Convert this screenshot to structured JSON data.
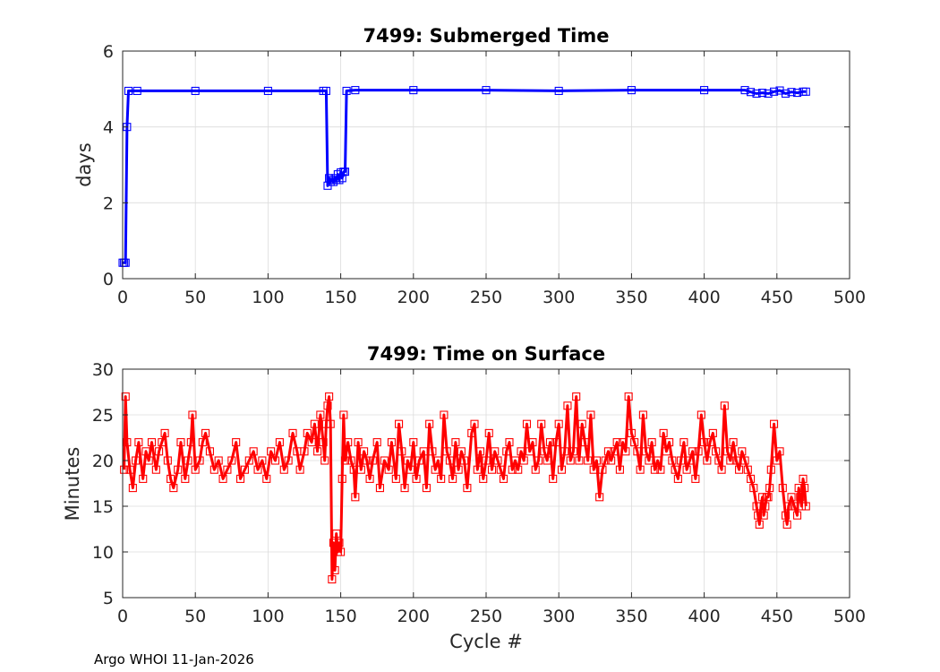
{
  "footer": "Argo WHOI 11-Jan-2026",
  "chart_data": [
    {
      "type": "line",
      "title": "7499: Submerged Time",
      "xlabel": "",
      "ylabel": "days",
      "xlim": [
        0,
        500
      ],
      "ylim": [
        0,
        6
      ],
      "xticks": [
        0,
        50,
        100,
        150,
        200,
        250,
        300,
        350,
        400,
        450,
        500
      ],
      "yticks": [
        0,
        2,
        4,
        6
      ],
      "grid": true,
      "color": "#0000ff",
      "marker": "square",
      "series": [
        {
          "name": "Submerged Time",
          "points": [
            [
              0,
              0.42
            ],
            [
              1,
              0.42
            ],
            [
              2,
              0.42
            ],
            [
              3,
              4.0
            ],
            [
              4,
              4.95
            ],
            [
              10,
              4.95
            ],
            [
              50,
              4.95
            ],
            [
              100,
              4.95
            ],
            [
              138,
              4.95
            ],
            [
              140,
              4.95
            ],
            [
              141,
              2.45
            ],
            [
              142,
              2.65
            ],
            [
              143,
              2.55
            ],
            [
              144,
              2.6
            ],
            [
              145,
              2.55
            ],
            [
              146,
              2.65
            ],
            [
              147,
              2.6
            ],
            [
              148,
              2.75
            ],
            [
              149,
              2.6
            ],
            [
              150,
              2.8
            ],
            [
              151,
              2.65
            ],
            [
              152,
              2.82
            ],
            [
              153,
              2.82
            ],
            [
              154,
              4.95
            ],
            [
              160,
              4.97
            ],
            [
              200,
              4.97
            ],
            [
              250,
              4.97
            ],
            [
              300,
              4.95
            ],
            [
              350,
              4.97
            ],
            [
              400,
              4.97
            ],
            [
              428,
              4.97
            ],
            [
              432,
              4.92
            ],
            [
              436,
              4.88
            ],
            [
              440,
              4.9
            ],
            [
              444,
              4.88
            ],
            [
              448,
              4.93
            ],
            [
              452,
              4.96
            ],
            [
              456,
              4.88
            ],
            [
              460,
              4.92
            ],
            [
              464,
              4.9
            ],
            [
              468,
              4.93
            ],
            [
              470,
              4.93
            ]
          ]
        }
      ]
    },
    {
      "type": "line",
      "title": "7499: Time on Surface",
      "xlabel": "Cycle #",
      "ylabel": "Minutes",
      "xlim": [
        0,
        500
      ],
      "ylim": [
        5,
        30
      ],
      "xticks": [
        0,
        50,
        100,
        150,
        200,
        250,
        300,
        350,
        400,
        450,
        500
      ],
      "yticks": [
        5,
        10,
        15,
        20,
        25,
        30
      ],
      "grid": true,
      "color": "#ff0000",
      "marker": "square",
      "series": [
        {
          "name": "Time on Surface",
          "points": [
            [
              1,
              19
            ],
            [
              2,
              27
            ],
            [
              3,
              22
            ],
            [
              5,
              19
            ],
            [
              7,
              17
            ],
            [
              9,
              20
            ],
            [
              11,
              22
            ],
            [
              14,
              18
            ],
            [
              16,
              21
            ],
            [
              18,
              20
            ],
            [
              20,
              22
            ],
            [
              23,
              19
            ],
            [
              25,
              21
            ],
            [
              27,
              22
            ],
            [
              29,
              23
            ],
            [
              31,
              20
            ],
            [
              33,
              18
            ],
            [
              35,
              17
            ],
            [
              38,
              19
            ],
            [
              40,
              22
            ],
            [
              43,
              18
            ],
            [
              45,
              20
            ],
            [
              47,
              22
            ],
            [
              48,
              25
            ],
            [
              50,
              19
            ],
            [
              53,
              20
            ],
            [
              55,
              22
            ],
            [
              57,
              23
            ],
            [
              60,
              21
            ],
            [
              63,
              19
            ],
            [
              66,
              20
            ],
            [
              69,
              18
            ],
            [
              72,
              19
            ],
            [
              75,
              20
            ],
            [
              78,
              22
            ],
            [
              81,
              18
            ],
            [
              84,
              19
            ],
            [
              87,
              20
            ],
            [
              90,
              21
            ],
            [
              93,
              19
            ],
            [
              96,
              20
            ],
            [
              99,
              18
            ],
            [
              102,
              21
            ],
            [
              105,
              20
            ],
            [
              108,
              22
            ],
            [
              111,
              19
            ],
            [
              114,
              20
            ],
            [
              117,
              23
            ],
            [
              120,
              21
            ],
            [
              122,
              19
            ],
            [
              125,
              21
            ],
            [
              127,
              23
            ],
            [
              130,
              22
            ],
            [
              132,
              24
            ],
            [
              134,
              21
            ],
            [
              136,
              25
            ],
            [
              138,
              22
            ],
            [
              139,
              20
            ],
            [
              140,
              24
            ],
            [
              141,
              26
            ],
            [
              142,
              27
            ],
            [
              143,
              24
            ],
            [
              144,
              7
            ],
            [
              145,
              11
            ],
            [
              146,
              8
            ],
            [
              147,
              12
            ],
            [
              148,
              10
            ],
            [
              149,
              11
            ],
            [
              150,
              10
            ],
            [
              151,
              18
            ],
            [
              152,
              25
            ],
            [
              153,
              20
            ],
            [
              155,
              22
            ],
            [
              157,
              20
            ],
            [
              159,
              19
            ],
            [
              160,
              16
            ],
            [
              162,
              22
            ],
            [
              164,
              19
            ],
            [
              166,
              21
            ],
            [
              168,
              20
            ],
            [
              170,
              18
            ],
            [
              172,
              20
            ],
            [
              175,
              22
            ],
            [
              177,
              17
            ],
            [
              180,
              20
            ],
            [
              183,
              19
            ],
            [
              185,
              22
            ],
            [
              188,
              18
            ],
            [
              190,
              24
            ],
            [
              192,
              21
            ],
            [
              194,
              17
            ],
            [
              196,
              20
            ],
            [
              198,
              19
            ],
            [
              200,
              22
            ],
            [
              202,
              18
            ],
            [
              204,
              20
            ],
            [
              207,
              21
            ],
            [
              209,
              17
            ],
            [
              211,
              24
            ],
            [
              213,
              21
            ],
            [
              215,
              19
            ],
            [
              217,
              20
            ],
            [
              219,
              18
            ],
            [
              221,
              25
            ],
            [
              223,
              21
            ],
            [
              225,
              20
            ],
            [
              227,
              18
            ],
            [
              229,
              22
            ],
            [
              231,
              19
            ],
            [
              233,
              21
            ],
            [
              235,
              20
            ],
            [
              237,
              17
            ],
            [
              240,
              23
            ],
            [
              242,
              24
            ],
            [
              244,
              19
            ],
            [
              246,
              21
            ],
            [
              248,
              18
            ],
            [
              250,
              20
            ],
            [
              252,
              23
            ],
            [
              254,
              19
            ],
            [
              256,
              21
            ],
            [
              258,
              20
            ],
            [
              260,
              19
            ],
            [
              262,
              18
            ],
            [
              264,
              21
            ],
            [
              266,
              22
            ],
            [
              268,
              19
            ],
            [
              270,
              20
            ],
            [
              272,
              19
            ],
            [
              274,
              21
            ],
            [
              276,
              20
            ],
            [
              278,
              24
            ],
            [
              280,
              21
            ],
            [
              282,
              22
            ],
            [
              284,
              19
            ],
            [
              286,
              20
            ],
            [
              288,
              24
            ],
            [
              290,
              21
            ],
            [
              292,
              20
            ],
            [
              294,
              22
            ],
            [
              296,
              18
            ],
            [
              298,
              22
            ],
            [
              300,
              24
            ],
            [
              302,
              19
            ],
            [
              304,
              21
            ],
            [
              306,
              26
            ],
            [
              308,
              20
            ],
            [
              310,
              21
            ],
            [
              312,
              27
            ],
            [
              314,
              20
            ],
            [
              316,
              24
            ],
            [
              318,
              22
            ],
            [
              320,
              20
            ],
            [
              322,
              25
            ],
            [
              324,
              19
            ],
            [
              326,
              20
            ],
            [
              328,
              16
            ],
            [
              330,
              19
            ],
            [
              332,
              20
            ],
            [
              334,
              21
            ],
            [
              336,
              20
            ],
            [
              338,
              21
            ],
            [
              340,
              22
            ],
            [
              342,
              19
            ],
            [
              344,
              22
            ],
            [
              346,
              21
            ],
            [
              348,
              27
            ],
            [
              350,
              23
            ],
            [
              352,
              22
            ],
            [
              354,
              21
            ],
            [
              356,
              19
            ],
            [
              358,
              25
            ],
            [
              360,
              21
            ],
            [
              362,
              20
            ],
            [
              364,
              22
            ],
            [
              366,
              19
            ],
            [
              368,
              20
            ],
            [
              370,
              19
            ],
            [
              372,
              23
            ],
            [
              374,
              21
            ],
            [
              376,
              22
            ],
            [
              378,
              20
            ],
            [
              380,
              19
            ],
            [
              382,
              18
            ],
            [
              384,
              20
            ],
            [
              386,
              22
            ],
            [
              388,
              19
            ],
            [
              390,
              20
            ],
            [
              392,
              21
            ],
            [
              394,
              18
            ],
            [
              396,
              21
            ],
            [
              398,
              25
            ],
            [
              400,
              22
            ],
            [
              402,
              20
            ],
            [
              404,
              22
            ],
            [
              406,
              23
            ],
            [
              408,
              21
            ],
            [
              410,
              20
            ],
            [
              412,
              19
            ],
            [
              414,
              26
            ],
            [
              416,
              21
            ],
            [
              418,
              20
            ],
            [
              420,
              22
            ],
            [
              422,
              20
            ],
            [
              424,
              19
            ],
            [
              426,
              21
            ],
            [
              428,
              20
            ],
            [
              430,
              19
            ],
            [
              432,
              18
            ],
            [
              434,
              17
            ],
            [
              436,
              15
            ],
            [
              437,
              14
            ],
            [
              438,
              13
            ],
            [
              439,
              15
            ],
            [
              440,
              16
            ],
            [
              441,
              14
            ],
            [
              442,
              15
            ],
            [
              443,
              16
            ],
            [
              444,
              16
            ],
            [
              445,
              17
            ],
            [
              446,
              19
            ],
            [
              448,
              24
            ],
            [
              450,
              20
            ],
            [
              452,
              21
            ],
            [
              454,
              17
            ],
            [
              456,
              14
            ],
            [
              457,
              13
            ],
            [
              458,
              15
            ],
            [
              460,
              16
            ],
            [
              462,
              15
            ],
            [
              464,
              14
            ],
            [
              465,
              17
            ],
            [
              466,
              16
            ],
            [
              467,
              15
            ],
            [
              468,
              18
            ],
            [
              469,
              17
            ],
            [
              470,
              15
            ]
          ]
        }
      ]
    }
  ]
}
